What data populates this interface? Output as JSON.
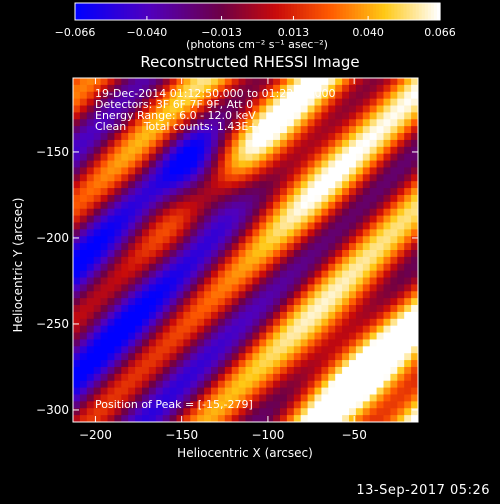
{
  "chart_data": {
    "type": "heatmap",
    "title": "Reconstructed RHESSI Image",
    "xlabel": "Heliocentric X (arcsec)",
    "ylabel": "Heliocentric Y (arcsec)",
    "xlim": [
      -213,
      -13
    ],
    "ylim": [
      -307,
      -107
    ],
    "x_ticks": [
      -200,
      -150,
      -100,
      -50
    ],
    "y_ticks": [
      -150,
      -200,
      -250,
      -300
    ],
    "x_tick_labels": [
      "−200",
      "−150",
      "−100",
      "−50"
    ],
    "y_tick_labels": [
      "−150",
      "−200",
      "−250",
      "−300"
    ],
    "colorbar": {
      "range": [
        -0.066,
        0.066
      ],
      "ticks": [
        -0.066,
        -0.04,
        -0.013,
        0.013,
        0.04,
        0.066
      ],
      "tick_labels": [
        "−0.066",
        "−0.040",
        "−0.013",
        "0.013",
        "0.040",
        "0.066"
      ],
      "unit_label": "(photons cm⁻² s⁻¹ asec⁻²)"
    },
    "annotations": {
      "time_range": "19-Dec-2014 01:12:50.000 to 01:22:50.000",
      "detectors": "Detectors: 3F 6F 7F 9F, Att 0",
      "energy_range": "Energy Range: 6.0 - 12.0 keV",
      "clean_info": "Clean     Total counts: 1.43E+05",
      "peak_position": "Position of Peak = [-15,-279]"
    },
    "peak": {
      "x": -15,
      "y": -279
    },
    "grid": {
      "nx": 50,
      "ny": 50
    },
    "palette": "rainbow-blue-purple-red-orange-yellow-white"
  },
  "footer": {
    "date": "13-Sep-2017 05:26"
  }
}
